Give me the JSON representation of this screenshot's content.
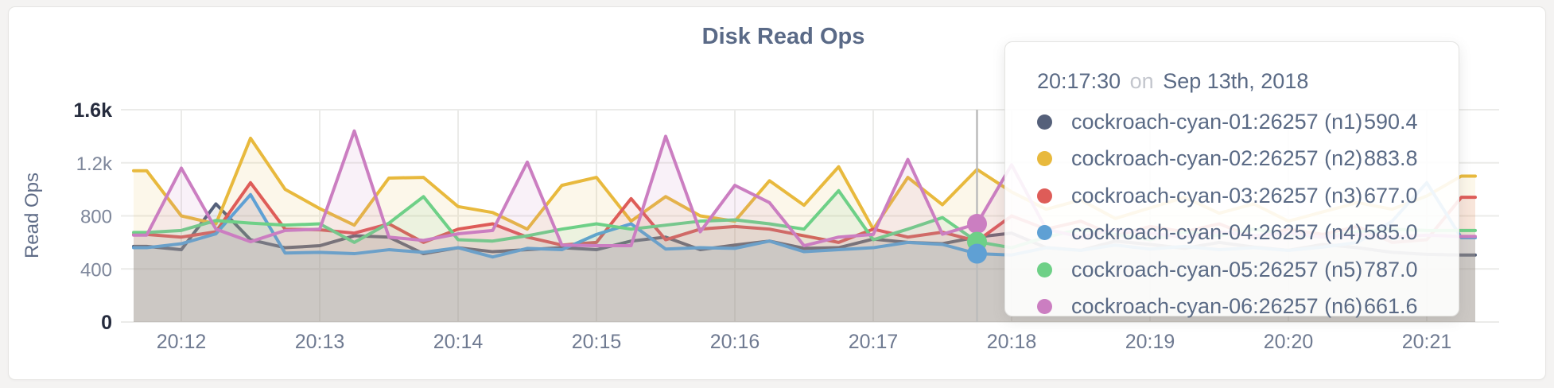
{
  "page": {
    "background": "#f4f3f2"
  },
  "panel": {
    "background": "#ffffff",
    "border_color": "#e6e5e3"
  },
  "title": "Disk Read Ops",
  "chart_data": {
    "type": "line",
    "title": "Disk Read Ops",
    "ylabel": "Read Ops",
    "xlabel": "",
    "ylim": [
      0,
      1600
    ],
    "grid": true,
    "gridline_color": "#ebebe9",
    "fill_opacity": 0.11,
    "legend_position": "tooltip-overlay",
    "x_ticks": [
      "20:12",
      "20:13",
      "20:14",
      "20:15",
      "20:16",
      "20:17",
      "20:18",
      "20:19",
      "20:20",
      "20:21"
    ],
    "y_ticks": [
      {
        "value": 0,
        "label": "0",
        "emphasis": true
      },
      {
        "value": 400,
        "label": "400",
        "emphasis": false
      },
      {
        "value": 800,
        "label": "800",
        "emphasis": false
      },
      {
        "value": 1200,
        "label": "1.2k",
        "emphasis": false
      },
      {
        "value": 1600,
        "label": "1.6k",
        "emphasis": true
      }
    ],
    "times": [
      "20:11:45",
      "20:12:00",
      "20:12:15",
      "20:12:30",
      "20:12:45",
      "20:13:00",
      "20:13:15",
      "20:13:30",
      "20:13:45",
      "20:14:00",
      "20:14:15",
      "20:14:30",
      "20:14:45",
      "20:15:00",
      "20:15:15",
      "20:15:30",
      "20:15:45",
      "20:16:00",
      "20:16:15",
      "20:16:30",
      "20:16:45",
      "20:17:00",
      "20:17:15",
      "20:17:30",
      "20:17:45",
      "20:18:00",
      "20:18:15",
      "20:18:30",
      "20:18:45",
      "20:19:00",
      "20:19:15",
      "20:19:30",
      "20:19:45",
      "20:20:00",
      "20:20:15",
      "20:20:30",
      "20:20:45",
      "20:21:00",
      "20:21:15"
    ],
    "series": [
      {
        "name": "cockroach-cyan-01:26257 (n1)",
        "node": "n1",
        "color": "#55607a",
        "values": [
          570,
          545,
          890,
          620,
          560,
          575,
          650,
          640,
          515,
          560,
          530,
          545,
          560,
          545,
          610,
          640,
          545,
          580,
          610,
          555,
          560,
          625,
          600,
          590.4,
          640,
          670,
          560,
          540,
          610,
          585,
          555,
          600,
          565,
          540,
          585,
          560,
          525,
          510,
          505
        ]
      },
      {
        "name": "cockroach-cyan-02:26257 (n2)",
        "node": "n2",
        "color": "#e8b93d",
        "values": [
          1140,
          800,
          740,
          1385,
          1000,
          855,
          730,
          1085,
          1090,
          870,
          825,
          700,
          1030,
          1090,
          760,
          945,
          800,
          760,
          1065,
          880,
          1170,
          700,
          1090,
          883.8,
          1150,
          980,
          850,
          920,
          780,
          860,
          940,
          820,
          890,
          760,
          830,
          900,
          850,
          950,
          1100
        ]
      },
      {
        "name": "cockroach-cyan-03:26257 (n3)",
        "node": "n3",
        "color": "#de5c58",
        "values": [
          660,
          640,
          680,
          1050,
          700,
          695,
          670,
          740,
          600,
          700,
          740,
          640,
          580,
          600,
          930,
          620,
          700,
          720,
          700,
          650,
          600,
          700,
          640,
          677,
          610,
          800,
          700,
          760,
          650,
          720,
          680,
          740,
          640,
          700,
          660,
          720,
          600,
          620,
          940
        ]
      },
      {
        "name": "cockroach-cyan-04:26257 (n4)",
        "node": "n4",
        "color": "#5fa0d4",
        "values": [
          560,
          590,
          665,
          960,
          520,
          525,
          515,
          545,
          525,
          560,
          490,
          555,
          545,
          660,
          740,
          550,
          560,
          555,
          610,
          530,
          545,
          560,
          600,
          585,
          515,
          505,
          560,
          540,
          580,
          550,
          570,
          545,
          560,
          540,
          565,
          600,
          760,
          1050,
          635
        ]
      },
      {
        "name": "cockroach-cyan-05:26257 (n5)",
        "node": "n5",
        "color": "#6ed087",
        "values": [
          675,
          690,
          765,
          745,
          730,
          740,
          600,
          745,
          945,
          620,
          610,
          650,
          700,
          740,
          700,
          730,
          760,
          770,
          740,
          700,
          990,
          620,
          700,
          787,
          605,
          560,
          640,
          700,
          660,
          620,
          680,
          650,
          700,
          660,
          640,
          680,
          700,
          690,
          690
        ]
      },
      {
        "name": "cockroach-cyan-06:26257 (n6)",
        "node": "n6",
        "color": "#cb7ec1",
        "values": [
          655,
          1160,
          700,
          605,
          690,
          700,
          1440,
          640,
          615,
          665,
          690,
          1205,
          580,
          575,
          575,
          1400,
          680,
          1030,
          900,
          575,
          640,
          660,
          1225,
          661.6,
          740,
          1185,
          700,
          640,
          700,
          670,
          640,
          680,
          650,
          670,
          640,
          660,
          640,
          655,
          645
        ]
      }
    ]
  },
  "hover": {
    "crosshair_color": "#bcbcbc",
    "dot_index": 24,
    "dot_series": [
      "n6",
      "n5",
      "n4"
    ]
  },
  "tooltip": {
    "time": "20:17:30",
    "conjunction": "on",
    "date": "Sep 13th, 2018",
    "rows": [
      {
        "name": "cockroach-cyan-01:26257 (n1)",
        "value": "590.4"
      },
      {
        "name": "cockroach-cyan-02:26257 (n2)",
        "value": "883.8"
      },
      {
        "name": "cockroach-cyan-03:26257 (n3)",
        "value": "677.0"
      },
      {
        "name": "cockroach-cyan-04:26257 (n4)",
        "value": "585.0"
      },
      {
        "name": "cockroach-cyan-05:26257 (n5)",
        "value": "787.0"
      },
      {
        "name": "cockroach-cyan-06:26257 (n6)",
        "value": "661.6"
      }
    ]
  }
}
